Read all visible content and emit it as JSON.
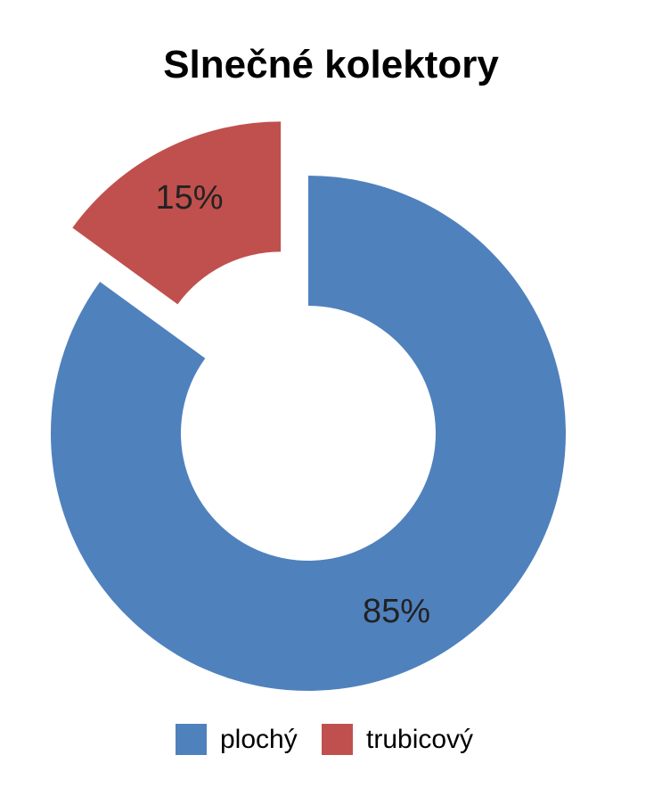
{
  "chart_data": {
    "type": "pie",
    "variant": "donut",
    "title": "Slnečné kolektory",
    "categories": [
      "plochý",
      "trubicový"
    ],
    "values": [
      85,
      15
    ],
    "labels": [
      "85%",
      "15%"
    ],
    "colors": [
      "#4F81BD",
      "#C0504D"
    ],
    "exploded": [
      "trubicový"
    ],
    "legend_position": "bottom"
  }
}
